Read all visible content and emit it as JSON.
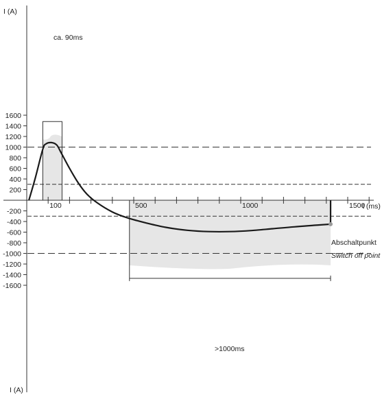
{
  "chart_data": {
    "type": "line",
    "title": "",
    "ylabel_top": "I (A)",
    "ylabel_bottom": "I (A)",
    "xlabel": "t (ms)",
    "xlim": [
      0,
      1650
    ],
    "ylim": [
      -1750,
      1800
    ],
    "yticks": [
      -1600,
      -1400,
      -1200,
      -1000,
      -800,
      -600,
      -400,
      -200,
      200,
      400,
      600,
      800,
      1000,
      1200,
      1400,
      1600
    ],
    "xtick_labels": [
      {
        "value": 100,
        "label": "100"
      },
      {
        "value": 500,
        "label": "500"
      },
      {
        "value": 1000,
        "label": "1000"
      },
      {
        "value": 1500,
        "label": "1500"
      }
    ],
    "xtick_minor": [
      200,
      300,
      400,
      600,
      700,
      800,
      900,
      1100,
      1200,
      1300,
      1400,
      1600
    ],
    "reference_lines": [
      {
        "y": 1000,
        "style": "long-dash"
      },
      {
        "y": 300,
        "style": "short-dash"
      },
      {
        "y": -300,
        "style": "short-dash"
      },
      {
        "y": -1000,
        "style": "long-dash"
      }
    ],
    "series": [
      {
        "values": [
          {
            "x": 10,
            "y": 0
          },
          {
            "x": 40,
            "y": 420
          },
          {
            "x": 75,
            "y": 960
          },
          {
            "x": 90,
            "y": 1060
          },
          {
            "x": 115,
            "y": 1085
          },
          {
            "x": 140,
            "y": 1040
          },
          {
            "x": 160,
            "y": 900
          },
          {
            "x": 200,
            "y": 600
          },
          {
            "x": 240,
            "y": 330
          },
          {
            "x": 280,
            "y": 120
          },
          {
            "x": 330,
            "y": -50
          },
          {
            "x": 400,
            "y": -220
          },
          {
            "x": 470,
            "y": -330
          },
          {
            "x": 560,
            "y": -430
          },
          {
            "x": 650,
            "y": -510
          },
          {
            "x": 750,
            "y": -565
          },
          {
            "x": 850,
            "y": -590
          },
          {
            "x": 950,
            "y": -590
          },
          {
            "x": 1050,
            "y": -570
          },
          {
            "x": 1150,
            "y": -535
          },
          {
            "x": 1250,
            "y": -500
          },
          {
            "x": 1350,
            "y": -470
          },
          {
            "x": 1420,
            "y": -450
          },
          {
            "x": 1420,
            "y": -100
          },
          {
            "x": 1420,
            "y": 0
          }
        ]
      }
    ],
    "annotations": {
      "peak_window": {
        "label": "ca. 90ms",
        "x_start": 75,
        "x_end": 165,
        "bracket_y": 1480,
        "fill_top_y": 1200
      },
      "negative_window": {
        "label": ">1000ms",
        "x_start": 480,
        "x_end": 1420,
        "fill_bottom_y": -1250,
        "bracket_y": -1470
      },
      "switch_off": {
        "label": "Abschaltpunkt",
        "label_italic": "Switch off point",
        "x": 1420,
        "y": -450
      }
    },
    "colors": {
      "curve": "#1a1a1a",
      "shade": "#e6e6e6",
      "axis": "#333333",
      "marker": "#9a9a9a"
    }
  }
}
